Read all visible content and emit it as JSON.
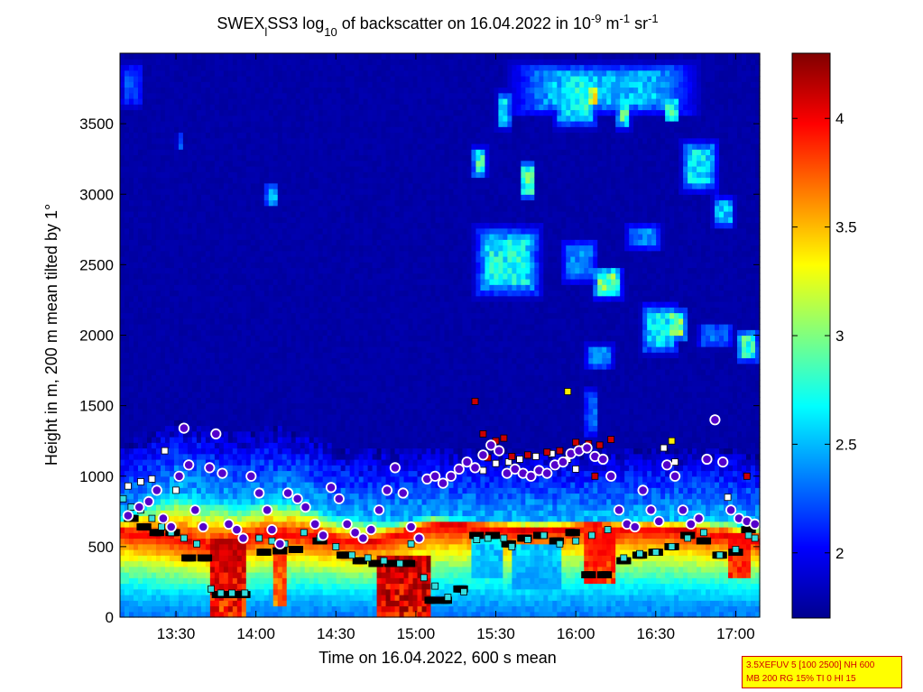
{
  "chart_data": {
    "type": "heatmap",
    "title": {
      "part1": "SWEX",
      "sub1": "l",
      "part2": "SS3 log",
      "sub2": "10",
      "part3": " of backscatter on 16.04.2022 in 10",
      "sup1": "-9",
      "part4": " m",
      "sup2": "-1",
      "part5": " sr",
      "sup3": "-1"
    },
    "xlabel": "Time on 16.04.2022, 600 s mean",
    "ylabel": "Height in m, 200 m mean tilted by 1°",
    "x_range_hours": [
      13.15,
      17.15
    ],
    "x_ticks": [
      {
        "h": 13.5,
        "label": "13:30"
      },
      {
        "h": 14.0,
        "label": "14:00"
      },
      {
        "h": 14.5,
        "label": "14:30"
      },
      {
        "h": 15.0,
        "label": "15:00"
      },
      {
        "h": 15.5,
        "label": "15:30"
      },
      {
        "h": 16.0,
        "label": "16:00"
      },
      {
        "h": 16.5,
        "label": "16:30"
      },
      {
        "h": 17.0,
        "label": "17:00"
      }
    ],
    "y_range": [
      0,
      4000
    ],
    "y_ticks": [
      {
        "v": 0,
        "label": "0"
      },
      {
        "v": 500,
        "label": "500"
      },
      {
        "v": 1000,
        "label": "1000"
      },
      {
        "v": 1500,
        "label": "1500"
      },
      {
        "v": 2000,
        "label": "2000"
      },
      {
        "v": 2500,
        "label": "2500"
      },
      {
        "v": 3000,
        "label": "3000"
      },
      {
        "v": 3500,
        "label": "3500"
      }
    ],
    "colorbar": {
      "colormap": "jet",
      "range": [
        1.7,
        4.3
      ],
      "ticks": [
        {
          "v": 2,
          "label": "2"
        },
        {
          "v": 2.5,
          "label": "2.5"
        },
        {
          "v": 3,
          "label": "3"
        },
        {
          "v": 3.5,
          "label": "3.5"
        },
        {
          "v": 4,
          "label": "4"
        }
      ]
    },
    "background_value": 1.8,
    "aerosol_layer_top": [
      [
        13.15,
        700
      ],
      [
        13.3,
        800
      ],
      [
        13.5,
        900
      ],
      [
        13.7,
        850
      ],
      [
        13.9,
        800
      ],
      [
        14.1,
        850
      ],
      [
        14.3,
        820
      ],
      [
        14.5,
        720
      ],
      [
        14.7,
        700
      ],
      [
        14.9,
        680
      ],
      [
        15.1,
        720
      ],
      [
        15.3,
        700
      ],
      [
        15.5,
        700
      ],
      [
        15.7,
        700
      ],
      [
        15.9,
        680
      ],
      [
        16.1,
        700
      ],
      [
        16.3,
        700
      ],
      [
        16.5,
        700
      ],
      [
        16.7,
        700
      ],
      [
        16.9,
        700
      ],
      [
        17.15,
        650
      ]
    ],
    "dense_layer_top": [
      [
        13.15,
        620
      ],
      [
        13.3,
        600
      ],
      [
        13.5,
        560
      ],
      [
        13.7,
        520
      ],
      [
        13.9,
        560
      ],
      [
        14.1,
        600
      ],
      [
        14.3,
        600
      ],
      [
        14.5,
        560
      ],
      [
        14.7,
        540
      ],
      [
        14.9,
        600
      ],
      [
        15.1,
        660
      ],
      [
        15.3,
        660
      ],
      [
        15.5,
        640
      ],
      [
        15.7,
        620
      ],
      [
        15.9,
        640
      ],
      [
        16.1,
        660
      ],
      [
        16.3,
        640
      ],
      [
        16.5,
        640
      ],
      [
        16.7,
        620
      ],
      [
        16.9,
        600
      ],
      [
        17.15,
        560
      ]
    ],
    "features": [
      {
        "t0": 13.7,
        "t1": 13.95,
        "h0": 0,
        "h1": 560,
        "v": 4.2
      },
      {
        "t0": 14.1,
        "t1": 14.2,
        "h0": 100,
        "h1": 500,
        "v": 3.9
      },
      {
        "t0": 14.75,
        "t1": 15.1,
        "h0": 0,
        "h1": 450,
        "v": 4.3
      },
      {
        "t0": 16.05,
        "t1": 16.25,
        "h0": 250,
        "h1": 600,
        "v": 4.0
      },
      {
        "t0": 16.95,
        "t1": 17.1,
        "h0": 300,
        "h1": 600,
        "v": 4.0
      },
      {
        "t0": 15.35,
        "t1": 15.55,
        "h0": 300,
        "h1": 560,
        "v": 2.4
      },
      {
        "t0": 15.6,
        "t1": 15.9,
        "h0": 200,
        "h1": 500,
        "v": 2.4
      }
    ],
    "clouds": [
      {
        "t0": 15.55,
        "t1": 16.8,
        "h0": 3550,
        "h1": 3950,
        "v": 2.7
      },
      {
        "t0": 15.5,
        "t1": 15.6,
        "h0": 3450,
        "h1": 3750,
        "v": 2.8
      },
      {
        "t0": 15.65,
        "t1": 15.75,
        "h0": 2950,
        "h1": 3250,
        "v": 3.1
      },
      {
        "t0": 15.35,
        "t1": 15.45,
        "h0": 3100,
        "h1": 3350,
        "v": 3.0
      },
      {
        "t0": 15.85,
        "t1": 16.15,
        "h0": 3450,
        "h1": 3950,
        "v": 2.9
      },
      {
        "t0": 16.05,
        "t1": 16.15,
        "h0": 3600,
        "h1": 3800,
        "v": 3.5
      },
      {
        "t0": 16.25,
        "t1": 16.35,
        "h0": 3450,
        "h1": 3750,
        "v": 3.1
      },
      {
        "t0": 16.55,
        "t1": 16.65,
        "h0": 3500,
        "h1": 3700,
        "v": 3.0
      },
      {
        "t0": 16.65,
        "t1": 16.9,
        "h0": 3000,
        "h1": 3400,
        "v": 2.8
      },
      {
        "t0": 16.85,
        "t1": 17.0,
        "h0": 2750,
        "h1": 3000,
        "v": 2.7
      },
      {
        "t0": 15.35,
        "t1": 15.8,
        "h0": 2250,
        "h1": 2800,
        "v": 2.9
      },
      {
        "t0": 15.9,
        "t1": 16.15,
        "h0": 2350,
        "h1": 2700,
        "v": 2.5
      },
      {
        "t0": 16.1,
        "t1": 16.3,
        "h0": 2250,
        "h1": 2500,
        "v": 3.2
      },
      {
        "t0": 16.3,
        "t1": 16.55,
        "h0": 2600,
        "h1": 2800,
        "v": 2.5
      },
      {
        "t0": 16.4,
        "t1": 16.65,
        "h0": 1850,
        "h1": 2250,
        "v": 2.8
      },
      {
        "t0": 16.55,
        "t1": 16.7,
        "h0": 1950,
        "h1": 2200,
        "v": 3.2
      },
      {
        "t0": 16.75,
        "t1": 17.0,
        "h0": 1900,
        "h1": 2100,
        "v": 2.4
      },
      {
        "t0": 17.0,
        "t1": 17.15,
        "h0": 1800,
        "h1": 2050,
        "v": 3.0
      },
      {
        "t0": 16.05,
        "t1": 16.25,
        "h0": 1750,
        "h1": 1950,
        "v": 2.5
      },
      {
        "t0": 16.05,
        "t1": 16.15,
        "h0": 1250,
        "h1": 1650,
        "v": 2.4
      },
      {
        "t0": 14.05,
        "t1": 14.15,
        "h0": 2900,
        "h1": 3100,
        "v": 2.6
      },
      {
        "t0": 13.5,
        "t1": 13.55,
        "h0": 3300,
        "h1": 3450,
        "v": 2.3
      },
      {
        "t0": 13.15,
        "t1": 13.3,
        "h0": 3600,
        "h1": 3950,
        "v": 2.3
      }
    ],
    "circles_blue_white": [
      [
        13.2,
        720
      ],
      [
        13.27,
        780
      ],
      [
        13.33,
        820
      ],
      [
        13.38,
        900
      ],
      [
        13.42,
        700
      ],
      [
        13.47,
        640
      ],
      [
        13.52,
        1000
      ],
      [
        13.55,
        1340
      ],
      [
        13.58,
        1080
      ],
      [
        13.62,
        760
      ],
      [
        13.67,
        640
      ],
      [
        13.71,
        1060
      ],
      [
        13.75,
        1300
      ],
      [
        13.79,
        1020
      ],
      [
        13.83,
        660
      ],
      [
        13.88,
        620
      ],
      [
        13.92,
        560
      ],
      [
        13.97,
        1000
      ],
      [
        14.02,
        880
      ],
      [
        14.07,
        760
      ],
      [
        14.1,
        620
      ],
      [
        14.15,
        520
      ],
      [
        14.2,
        880
      ],
      [
        14.26,
        840
      ],
      [
        14.31,
        780
      ],
      [
        14.37,
        660
      ],
      [
        14.42,
        580
      ],
      [
        14.47,
        920
      ],
      [
        14.52,
        840
      ],
      [
        14.57,
        660
      ],
      [
        14.62,
        600
      ],
      [
        14.67,
        560
      ],
      [
        14.72,
        620
      ],
      [
        14.77,
        760
      ],
      [
        14.82,
        900
      ],
      [
        14.87,
        1060
      ],
      [
        14.92,
        880
      ],
      [
        14.97,
        640
      ],
      [
        15.02,
        560
      ],
      [
        15.07,
        980
      ],
      [
        15.12,
        1000
      ],
      [
        15.17,
        950
      ],
      [
        15.22,
        1000
      ],
      [
        15.27,
        1050
      ],
      [
        15.32,
        1100
      ],
      [
        15.37,
        1060
      ],
      [
        15.42,
        1150
      ],
      [
        15.47,
        1220
      ],
      [
        15.52,
        1180
      ],
      [
        15.57,
        1020
      ],
      [
        15.62,
        1050
      ],
      [
        15.67,
        1020
      ],
      [
        15.72,
        1000
      ],
      [
        15.77,
        1040
      ],
      [
        15.82,
        1020
      ],
      [
        15.87,
        1080
      ],
      [
        15.92,
        1100
      ],
      [
        15.97,
        1160
      ],
      [
        16.02,
        1180
      ],
      [
        16.07,
        1200
      ],
      [
        16.12,
        1140
      ],
      [
        16.17,
        1120
      ],
      [
        16.22,
        1000
      ],
      [
        16.27,
        760
      ],
      [
        16.32,
        660
      ],
      [
        16.37,
        640
      ],
      [
        16.42,
        900
      ],
      [
        16.47,
        760
      ],
      [
        16.52,
        680
      ],
      [
        16.57,
        1080
      ],
      [
        16.62,
        1000
      ],
      [
        16.67,
        760
      ],
      [
        16.72,
        660
      ],
      [
        16.77,
        700
      ],
      [
        16.82,
        1120
      ],
      [
        16.87,
        1400
      ],
      [
        16.92,
        1100
      ],
      [
        16.97,
        760
      ],
      [
        17.02,
        700
      ],
      [
        17.07,
        680
      ],
      [
        17.12,
        660
      ]
    ],
    "squares_cyan": [
      [
        13.17,
        840
      ],
      [
        13.22,
        780
      ],
      [
        13.28,
        760
      ],
      [
        13.35,
        700
      ],
      [
        13.41,
        640
      ],
      [
        13.47,
        600
      ],
      [
        13.55,
        560
      ],
      [
        13.63,
        520
      ],
      [
        13.72,
        200
      ],
      [
        13.78,
        170
      ],
      [
        13.85,
        170
      ],
      [
        13.93,
        170
      ],
      [
        14.02,
        560
      ],
      [
        14.1,
        540
      ],
      [
        14.18,
        520
      ],
      [
        14.3,
        600
      ],
      [
        14.4,
        560
      ],
      [
        14.5,
        500
      ],
      [
        14.6,
        440
      ],
      [
        14.7,
        420
      ],
      [
        14.8,
        400
      ],
      [
        14.9,
        380
      ],
      [
        14.97,
        520
      ],
      [
        15.05,
        280
      ],
      [
        15.12,
        220
      ],
      [
        15.2,
        140
      ],
      [
        15.3,
        180
      ],
      [
        15.38,
        550
      ],
      [
        15.45,
        560
      ],
      [
        15.55,
        560
      ],
      [
        15.6,
        500
      ],
      [
        15.7,
        550
      ],
      [
        15.8,
        580
      ],
      [
        15.9,
        520
      ],
      [
        16.0,
        540
      ],
      [
        16.1,
        580
      ],
      [
        16.2,
        620
      ],
      [
        16.3,
        420
      ],
      [
        16.4,
        450
      ],
      [
        16.5,
        460
      ],
      [
        16.6,
        500
      ],
      [
        16.7,
        560
      ],
      [
        16.8,
        600
      ],
      [
        16.9,
        440
      ],
      [
        17.0,
        480
      ],
      [
        17.08,
        580
      ],
      [
        17.12,
        560
      ]
    ],
    "squares_black": [
      [
        13.22,
        700
      ],
      [
        13.3,
        640
      ],
      [
        13.38,
        600
      ],
      [
        13.48,
        600
      ],
      [
        13.58,
        420
      ],
      [
        13.68,
        420
      ],
      [
        13.77,
        160
      ],
      [
        13.85,
        160
      ],
      [
        13.92,
        160
      ],
      [
        14.05,
        460
      ],
      [
        14.15,
        470
      ],
      [
        14.25,
        480
      ],
      [
        14.4,
        540
      ],
      [
        14.55,
        440
      ],
      [
        14.65,
        400
      ],
      [
        14.75,
        380
      ],
      [
        14.85,
        380
      ],
      [
        14.95,
        380
      ],
      [
        15.1,
        120
      ],
      [
        15.18,
        120
      ],
      [
        15.28,
        200
      ],
      [
        15.38,
        580
      ],
      [
        15.48,
        580
      ],
      [
        15.58,
        520
      ],
      [
        15.68,
        560
      ],
      [
        15.78,
        580
      ],
      [
        15.88,
        540
      ],
      [
        15.98,
        600
      ],
      [
        16.08,
        300
      ],
      [
        16.18,
        300
      ],
      [
        16.3,
        400
      ],
      [
        16.4,
        440
      ],
      [
        16.5,
        460
      ],
      [
        16.6,
        500
      ],
      [
        16.7,
        580
      ],
      [
        16.8,
        540
      ],
      [
        16.9,
        440
      ],
      [
        17.0,
        460
      ],
      [
        17.08,
        620
      ]
    ],
    "squares_red": [
      [
        15.37,
        1530
      ],
      [
        15.42,
        1300
      ],
      [
        15.45,
        1130
      ],
      [
        15.5,
        1250
      ],
      [
        15.55,
        1270
      ],
      [
        15.6,
        1140
      ],
      [
        15.7,
        1150
      ],
      [
        15.82,
        1170
      ],
      [
        15.9,
        1180
      ],
      [
        16.0,
        1240
      ],
      [
        16.08,
        1230
      ],
      [
        16.12,
        1000
      ],
      [
        16.15,
        1220
      ],
      [
        16.22,
        1260
      ],
      [
        17.07,
        1000
      ]
    ],
    "squares_white": [
      [
        13.2,
        930
      ],
      [
        13.28,
        960
      ],
      [
        13.35,
        980
      ],
      [
        13.43,
        1180
      ],
      [
        13.5,
        900
      ],
      [
        15.42,
        1040
      ],
      [
        15.5,
        1090
      ],
      [
        15.58,
        1100
      ],
      [
        15.65,
        1120
      ],
      [
        15.75,
        1140
      ],
      [
        15.85,
        1160
      ],
      [
        15.95,
        1120
      ],
      [
        16.0,
        1050
      ],
      [
        16.05,
        1200
      ],
      [
        16.55,
        1200
      ],
      [
        16.62,
        1100
      ],
      [
        16.95,
        850
      ]
    ],
    "squares_yellow": [
      [
        15.95,
        1600
      ],
      [
        16.6,
        1250
      ]
    ]
  },
  "param_box": {
    "line1": "3.5XEFUV 5 [100 2500] NH 600",
    "line2": "MB 200 RG 15% TI 0 HI 15"
  }
}
